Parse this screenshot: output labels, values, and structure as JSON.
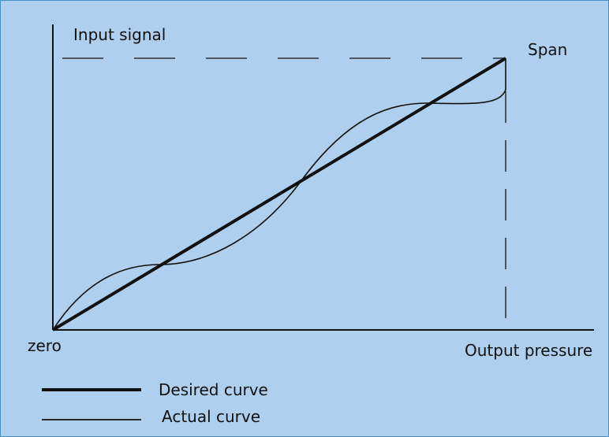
{
  "labels": {
    "y_axis": "Input signal",
    "span": "Span",
    "origin": "zero",
    "x_axis": "Output pressure"
  },
  "legend": {
    "desired": "Desired curve",
    "actual": "Actual curve"
  },
  "colors": {
    "background": "#aed0ee",
    "border": "#4a8fc4",
    "ink": "#111111"
  }
}
